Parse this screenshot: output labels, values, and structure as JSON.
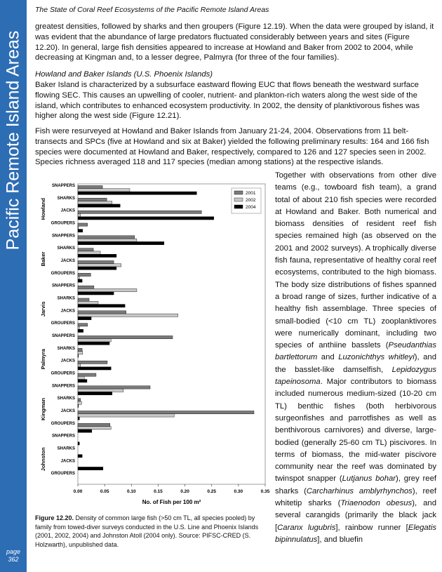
{
  "header": {
    "title": "The State of Coral Reef Ecosystems of the Pacific Remote Island Areas"
  },
  "sidebar": {
    "title": "Pacific Remote Island Areas",
    "page_word": "page",
    "page_number": "362"
  },
  "body": {
    "paragraph_1": "greatest densities, followed by sharks and then groupers (Figure 12.19).  When the data were grouped by island, it was evident that the abundance of large predators fluctuated considerably between years and sites (Figure 12.20).  In general, large fish densities appeared to increase at Howland and Baker from 2002 to 2004, while decreasing at Kingman and, to a lesser degree, Palmyra (for three of the four families).",
    "heading": "Howland and Baker Islands (U.S. Phoenix Islands)",
    "paragraph_2": "Baker Island is characterized by a subsurface eastward flowing EUC that flows beneath the westward surface flowing SEC.  This causes an upwelling of cooler, nutrient- and plankton-rich waters along the west side of the island, which contributes to enhanced ecosystem productivity.  In 2002, the density of planktivorous fishes was higher along the west side (Figure 12.21).",
    "paragraph_3": "Fish were resurveyed at Howland and Baker Islands from January 21-24, 2004.  Observations from 11 belt-transects and SPCs (five at Howland and six at Baker) yielded the following preliminary results: 164 and 166 fish species were documented at Howland and Baker, respectively, compared to 126 and 127 species seen in 2002.  Species richness averaged 118 and 117 species (median among stations) at the respective islands."
  },
  "chart_data": {
    "type": "grouped-hbar",
    "x_label": "No. of Fish per 100 m²",
    "xlim": [
      0,
      0.35
    ],
    "xticks": [
      {
        "value": 0,
        "label": "0.00"
      },
      0.05,
      {
        "value": 0.1,
        "label": "0.10"
      },
      0.15,
      {
        "value": 0.2,
        "label": "0.20"
      },
      0.25,
      {
        "value": 0.3,
        "label": "0.30"
      },
      0.35
    ],
    "groups": [
      {
        "name": "Howland",
        "categories": [
          "SNAPPERS",
          "SHARKS",
          "JACKS",
          "GROUPERS"
        ]
      },
      {
        "name": "Baker",
        "categories": [
          "SNAPPERS",
          "SHARKS",
          "JACKS",
          "GROUPERS"
        ]
      },
      {
        "name": "Jarvis",
        "categories": [
          "SNAPPERS",
          "SHARKS",
          "JACKS",
          "GROUPERS"
        ]
      },
      {
        "name": "Palmyra",
        "categories": [
          "SNAPPERS",
          "SHARKS",
          "JACKS",
          "GROUPERS"
        ]
      },
      {
        "name": "Kingman",
        "categories": [
          "SNAPPERS",
          "SHARKS",
          "JACKS",
          "GROUPERS"
        ]
      },
      {
        "name": "Johnston",
        "categories": [
          "SNAPPERS",
          "SHARKS",
          "JACKS",
          "GROUPERS"
        ]
      }
    ],
    "series": [
      {
        "name": "2001",
        "color": "#7a7a7a",
        "values": [
          [
            0.046,
            0.054,
            0.231,
            0.018
          ],
          [
            0.106,
            0.029,
            0.067,
            0.024
          ],
          [
            0.03,
            0.021,
            0.09,
            0.018
          ],
          [
            0.177,
            0.008,
            0.055,
            0.034
          ],
          [
            0.135,
            0.005,
            0.329,
            0.06
          ],
          [
            null,
            null,
            null,
            null
          ]
        ]
      },
      {
        "name": "2002",
        "color": "#c8c8c8",
        "values": [
          [
            0.097,
            0.064,
            0.005,
            0.001
          ],
          [
            0.11,
            0.042,
            0.081,
            0.003
          ],
          [
            0.11,
            0.038,
            0.187,
            0.003
          ],
          [
            0.062,
            0.009,
            0.005,
            0.012
          ],
          [
            0.085,
            0.007,
            0.18,
            0.062
          ],
          [
            null,
            null,
            null,
            null
          ]
        ]
      },
      {
        "name": "2004",
        "color": "#000000",
        "values": [
          [
            0.222,
            0.079,
            0.254,
            0.009
          ],
          [
            0.161,
            0.072,
            0.072,
            0.008
          ],
          [
            0.067,
            0.088,
            0.025,
            0.01
          ],
          [
            0.059,
            0.001,
            0.062,
            0.017
          ],
          [
            0.064,
            0.001,
            0.003,
            0.026
          ],
          [
            0.003,
            0.008,
            0.047,
            0
          ]
        ]
      }
    ],
    "legend": "top-right"
  },
  "caption": {
    "label": "Figure 12.20.",
    "text": " Density of common large fish (>50 cm TL, all species pooled) by family from towed-diver surveys conducted in the U.S. Line and Phoenix Islands (2001, 2002, 2004) and Johnston Atoll (2004 only).  Source: PIFSC-CRED (S. Holzwarth), unpublished data."
  },
  "right_column": [
    {
      "text": "Together with observations from other dive teams (e.g., towboard fish team), a grand total of about 210 fish species were recorded at Howland and Baker.  Both numerical and biomass densities of resident reef fish species remained high (as observed on the 2001 and 2002 surveys).  A trophically diverse fish fauna, representative of healthy coral reef ecosystems, contributed to the high biomass.  The body size distributions of fishes spanned a broad range of sizes, further indicative of a healthy fish assemblage. Three species of small-bodied (<10 cm TL) zooplanktivores were numerically dominant, including two species of anthiine basslets ("
    },
    {
      "text": "Pseudanthias bartlettorum",
      "italic": true
    },
    {
      "text": " and "
    },
    {
      "text": "Luzonichthys whitleyi",
      "italic": true
    },
    {
      "text": "), and the basslet-like damselfish, "
    },
    {
      "text": "Lepidozygus tapeinosoma",
      "italic": true
    },
    {
      "text": ".  Major contributors to biomass included numerous medium-sized (10-20 cm TL) benthic fishes (both herbivorous surgeonfishes and parrotfishes as well as benthivorous carnivores) and diverse, large-bodied (generally 25-60 cm TL) piscivores.  In terms of biomass, the mid-water piscivore community near the reef was dominated by twinspot snapper ("
    },
    {
      "text": "Lutjanus bohar",
      "italic": true
    },
    {
      "text": "), grey reef sharks ("
    },
    {
      "text": "Carcharhinus amblyrhynchos",
      "italic": true
    },
    {
      "text": "), reef whitetip sharks ("
    },
    {
      "text": "Triaenodon obesus",
      "italic": true
    },
    {
      "text": "), and several carangids (primarily the black jack ["
    },
    {
      "text": "Caranx lugubris",
      "italic": true
    },
    {
      "text": "], rainbow runner ["
    },
    {
      "text": "Elegatis bipinnulatus",
      "italic": true
    },
    {
      "text": "], and bluefin"
    }
  ]
}
